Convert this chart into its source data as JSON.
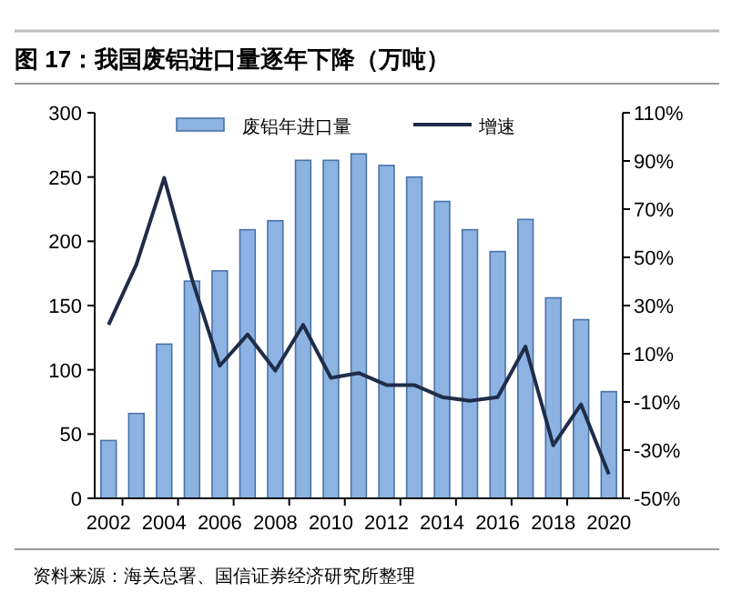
{
  "chart_data": {
    "type": "bar",
    "title": "图 17：我国废铝进口量逐年下降（万吨）",
    "categories": [
      "2002",
      null,
      "2004",
      null,
      "2006",
      null,
      "2008",
      null,
      "2010",
      null,
      "2012",
      null,
      "2014",
      null,
      "2016",
      null,
      "2018",
      null,
      "2020"
    ],
    "series": [
      {
        "name": "废铝年进口量",
        "color": "#8db3e2",
        "values": [
          45,
          66,
          120,
          169,
          177,
          209,
          216,
          263,
          263,
          268,
          259,
          250,
          231,
          209,
          192,
          217,
          156,
          139,
          83
        ]
      },
      {
        "name": "增速",
        "type": "line",
        "axis": "y2",
        "color": "#1f2d4a",
        "values": [
          22,
          47,
          83,
          41,
          5,
          18,
          3,
          22,
          0,
          2,
          -3,
          -3,
          -8,
          -9.5,
          -8,
          13,
          -28,
          -11,
          -40
        ]
      }
    ],
    "ylim": [
      0,
      300
    ],
    "yticks": [
      0,
      50,
      100,
      150,
      200,
      250,
      300
    ],
    "y2lim": [
      -50,
      110
    ],
    "y2ticks": [
      {
        "value": -50,
        "label": "-50%"
      },
      {
        "value": -30,
        "label": "-30%"
      },
      {
        "value": -10,
        "label": "-10%"
      },
      {
        "value": 10,
        "label": "10%"
      },
      {
        "value": 30,
        "label": "30%"
      },
      {
        "value": 50,
        "label": "50%"
      },
      {
        "value": 70,
        "label": "70%"
      },
      {
        "value": 90,
        "label": "90%"
      },
      {
        "value": 110,
        "label": "110%"
      }
    ],
    "legend": "top",
    "grid": false,
    "marker": "none",
    "line_style": "solid",
    "annotations": [
      "资料来源：海关总署、国信证券经济研究所整理"
    ]
  }
}
